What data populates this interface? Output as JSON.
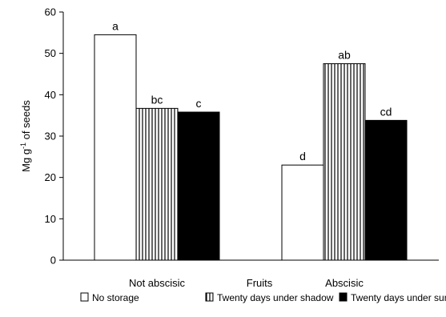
{
  "chart_data": {
    "type": "bar",
    "categories": [
      "Not abscisic",
      "Abscisic"
    ],
    "series": [
      {
        "name": "No storage",
        "values": [
          54.5,
          23
        ],
        "letters": [
          "a",
          "d"
        ],
        "pattern": "white"
      },
      {
        "name": "Twenty days under shadow",
        "values": [
          36.7,
          47.5
        ],
        "letters": [
          "bc",
          "ab"
        ],
        "pattern": "vertical-stripes"
      },
      {
        "name": "Twenty days under sun",
        "values": [
          35.8,
          33.8
        ],
        "letters": [
          "c",
          "cd"
        ],
        "pattern": "black"
      }
    ],
    "xlabel": "Fruits",
    "ylabel_main": "Mg g",
    "ylabel_sup": "-1",
    "ylabel_tail": " of seeds",
    "ylim": [
      0,
      60
    ],
    "yticks": [
      0,
      10,
      20,
      30,
      40,
      50,
      60
    ],
    "grid": false,
    "legend_position": "bottom"
  },
  "colors": {
    "bar_fill_black": "#000000",
    "bar_fill_white": "#ffffff",
    "stroke": "#000000"
  }
}
